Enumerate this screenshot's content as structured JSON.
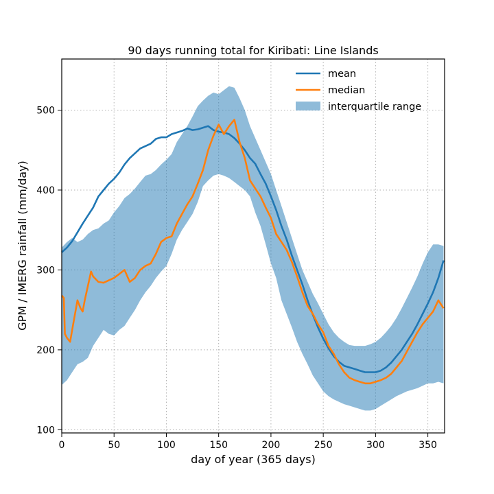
{
  "chart_data": {
    "type": "line",
    "title": "90 days running total for Kiribati: Line Islands",
    "xlabel": "day of year (365 days)",
    "ylabel": "GPM / IMERG rainfall (mm/day)",
    "xlim": [
      0,
      366
    ],
    "ylim": [
      96,
      564
    ],
    "xticks": [
      0,
      50,
      100,
      150,
      200,
      250,
      300,
      350
    ],
    "yticks": [
      100,
      200,
      300,
      400,
      500
    ],
    "grid": true,
    "legend_position": "top-right",
    "colors": {
      "mean": "#1f77b4",
      "median": "#ff7f0e",
      "iqr": "#1f77b4"
    },
    "legend": [
      "mean",
      "median",
      "interquartile range"
    ],
    "series": [
      {
        "name": "mean",
        "x": [
          0,
          5,
          10,
          15,
          20,
          25,
          30,
          35,
          40,
          45,
          50,
          55,
          60,
          65,
          70,
          75,
          80,
          85,
          90,
          95,
          100,
          105,
          110,
          115,
          120,
          125,
          130,
          135,
          140,
          145,
          150,
          155,
          160,
          165,
          170,
          175,
          180,
          185,
          190,
          195,
          200,
          205,
          210,
          215,
          220,
          225,
          230,
          235,
          240,
          245,
          250,
          255,
          260,
          265,
          270,
          275,
          280,
          285,
          290,
          295,
          300,
          305,
          310,
          315,
          320,
          325,
          330,
          335,
          340,
          345,
          350,
          355,
          360,
          365
        ],
        "values": [
          322,
          328,
          336,
          347,
          358,
          368,
          378,
          392,
          400,
          408,
          414,
          422,
          432,
          440,
          446,
          452,
          455,
          458,
          464,
          466,
          466,
          470,
          472,
          474,
          477,
          475,
          476,
          478,
          480,
          475,
          473,
          472,
          470,
          465,
          458,
          450,
          440,
          433,
          420,
          408,
          392,
          375,
          355,
          338,
          318,
          300,
          282,
          262,
          244,
          228,
          214,
          202,
          192,
          185,
          180,
          178,
          176,
          174,
          172,
          172,
          172,
          174,
          178,
          184,
          192,
          200,
          210,
          220,
          232,
          245,
          258,
          272,
          290,
          312
        ]
      },
      {
        "name": "median",
        "x": [
          0,
          2,
          3,
          5,
          8,
          10,
          12,
          15,
          18,
          20,
          22,
          25,
          28,
          30,
          35,
          40,
          45,
          50,
          55,
          60,
          65,
          70,
          75,
          80,
          85,
          90,
          95,
          100,
          105,
          110,
          115,
          120,
          125,
          130,
          135,
          140,
          145,
          150,
          155,
          160,
          165,
          170,
          175,
          180,
          185,
          190,
          195,
          200,
          205,
          210,
          215,
          220,
          225,
          230,
          235,
          240,
          245,
          250,
          255,
          260,
          265,
          270,
          275,
          280,
          285,
          290,
          295,
          300,
          305,
          310,
          315,
          320,
          325,
          330,
          335,
          340,
          345,
          350,
          355,
          360,
          365
        ],
        "values": [
          268,
          265,
          220,
          215,
          210,
          225,
          240,
          262,
          252,
          248,
          262,
          280,
          298,
          292,
          285,
          284,
          287,
          290,
          295,
          300,
          285,
          290,
          300,
          305,
          308,
          320,
          335,
          340,
          342,
          358,
          370,
          382,
          392,
          408,
          425,
          450,
          468,
          482,
          470,
          480,
          488,
          460,
          440,
          412,
          402,
          392,
          378,
          365,
          345,
          335,
          325,
          310,
          292,
          272,
          255,
          245,
          232,
          222,
          205,
          195,
          182,
          172,
          165,
          162,
          160,
          158,
          158,
          160,
          162,
          165,
          170,
          178,
          186,
          198,
          210,
          222,
          232,
          240,
          248,
          262,
          252
        ]
      },
      {
        "name": "interquartile range",
        "x": [
          0,
          5,
          10,
          15,
          20,
          25,
          30,
          35,
          40,
          45,
          50,
          55,
          60,
          65,
          70,
          75,
          80,
          85,
          90,
          95,
          100,
          105,
          110,
          115,
          120,
          125,
          130,
          135,
          140,
          145,
          150,
          155,
          160,
          165,
          170,
          175,
          180,
          185,
          190,
          195,
          200,
          205,
          210,
          215,
          220,
          225,
          230,
          235,
          240,
          245,
          250,
          255,
          260,
          265,
          270,
          275,
          280,
          285,
          290,
          295,
          300,
          305,
          310,
          315,
          320,
          325,
          330,
          335,
          340,
          345,
          350,
          355,
          360,
          365
        ],
        "low": [
          156,
          162,
          172,
          182,
          185,
          190,
          205,
          215,
          225,
          220,
          218,
          225,
          230,
          240,
          250,
          262,
          272,
          280,
          290,
          298,
          305,
          320,
          338,
          350,
          360,
          370,
          385,
          405,
          412,
          418,
          420,
          418,
          415,
          410,
          405,
          400,
          392,
          372,
          355,
          332,
          308,
          290,
          262,
          245,
          228,
          210,
          195,
          182,
          168,
          158,
          148,
          142,
          138,
          135,
          132,
          130,
          128,
          126,
          124,
          124,
          126,
          130,
          134,
          138,
          142,
          145,
          148,
          150,
          152,
          155,
          158,
          158,
          160,
          158
        ],
        "high": [
          328,
          335,
          340,
          335,
          338,
          345,
          350,
          352,
          358,
          362,
          372,
          380,
          390,
          395,
          402,
          410,
          418,
          420,
          425,
          432,
          438,
          445,
          460,
          470,
          480,
          492,
          505,
          512,
          518,
          522,
          520,
          525,
          530,
          528,
          515,
          500,
          480,
          465,
          450,
          435,
          420,
          400,
          380,
          360,
          340,
          320,
          300,
          285,
          270,
          258,
          245,
          232,
          222,
          215,
          210,
          206,
          205,
          205,
          205,
          207,
          210,
          215,
          222,
          230,
          240,
          252,
          265,
          278,
          292,
          308,
          322,
          332,
          332,
          330
        ]
      }
    ]
  }
}
